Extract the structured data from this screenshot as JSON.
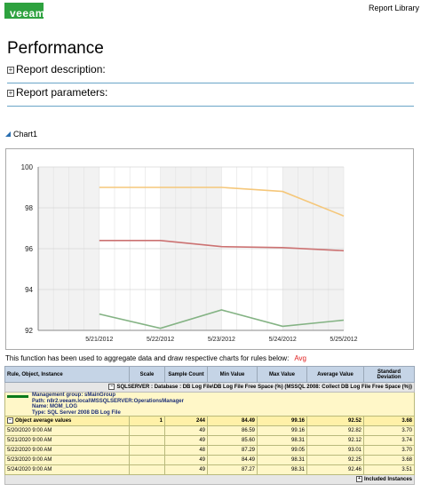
{
  "header": {
    "logo": "veeam",
    "report_library": "Report Library"
  },
  "page_title": "Performance",
  "sections": {
    "description": "Report description:",
    "parameters": "Report parameters:"
  },
  "chart_title": "Chart1",
  "chart_data": {
    "type": "line",
    "title": "",
    "xlabel": "",
    "ylabel": "",
    "x_ticks": [
      "5/21/2012",
      "5/22/2012",
      "5/23/2012",
      "5/24/2012",
      "5/25/2012"
    ],
    "y_ticks": [
      92,
      94,
      96,
      98,
      100
    ],
    "ylim": [
      92,
      100
    ],
    "grid": true,
    "series": [
      {
        "color": "#f5c77a",
        "x": [
          0,
          1,
          2,
          3,
          4
        ],
        "y": [
          99.0,
          99.0,
          99.0,
          98.8,
          97.6
        ]
      },
      {
        "color": "#cc7272",
        "x": [
          0,
          1,
          2,
          3,
          4
        ],
        "y": [
          96.4,
          96.4,
          96.1,
          96.05,
          95.9
        ]
      },
      {
        "color": "#84b384",
        "x": [
          0,
          1,
          2,
          3,
          4
        ],
        "y": [
          92.8,
          92.1,
          93.0,
          92.2,
          92.5
        ]
      }
    ]
  },
  "func_text": "This function has been used to aggregate data and draw respective charts for rules below:",
  "func_avg": "Avg",
  "table": {
    "headers": [
      "Rule, Object, Instance",
      "Scale",
      "Sample Count",
      "Min Value",
      "Max Value",
      "Average Value",
      "Standard Deviation"
    ],
    "group": "SQLSERVER : Database : DB Log File\\DB Log File Free Space (%) (MSSQL 2008: Collect DB Log File Free Space (%))",
    "info": [
      "Management group: sMainGroup",
      "Path: n8r2.veeam.local\\MSSQLSERVER:OperationsManager",
      "Name: MOM_LOG",
      "Type: SQL Server 2008 DB Log File"
    ],
    "object_row": {
      "label": "Object average values",
      "scale": "1",
      "count": "244",
      "min": "84.49",
      "max": "99.16",
      "avg": "92.52",
      "std": "3.68"
    },
    "rows": [
      {
        "time": "5/20/2020 9:00 AM",
        "count": "49",
        "min": "86.59",
        "max": "99.16",
        "avg": "92.82",
        "std": "3.70"
      },
      {
        "time": "5/21/2020 9:00 AM",
        "count": "49",
        "min": "85.60",
        "max": "98.31",
        "avg": "92.12",
        "std": "3.74"
      },
      {
        "time": "5/22/2020 9:00 AM",
        "count": "48",
        "min": "87.29",
        "max": "99.05",
        "avg": "93.01",
        "std": "3.70"
      },
      {
        "time": "5/23/2020 9:00 AM",
        "count": "49",
        "min": "84.49",
        "max": "98.31",
        "avg": "92.25",
        "std": "3.68"
      },
      {
        "time": "5/24/2020 9:00 AM",
        "count": "49",
        "min": "87.27",
        "max": "98.31",
        "avg": "92.46",
        "std": "3.51"
      }
    ],
    "included": "Included Instances"
  }
}
